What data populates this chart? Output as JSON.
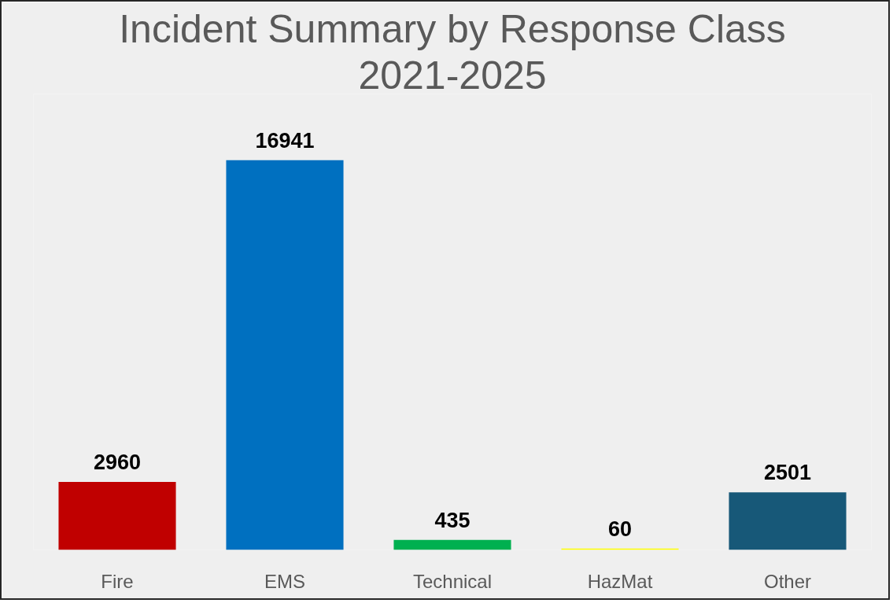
{
  "chart_data": {
    "type": "bar",
    "title": "Incident Summary by Response Class",
    "subtitle": "2021-2025",
    "categories": [
      "Fire",
      "EMS",
      "Technical",
      "HazMat",
      "Other"
    ],
    "values": [
      2960,
      16941,
      435,
      60,
      2501
    ],
    "colors": [
      "#c00000",
      "#0070c0",
      "#00b050",
      "#ffff00",
      "#175878"
    ],
    "data_labels": true
  }
}
